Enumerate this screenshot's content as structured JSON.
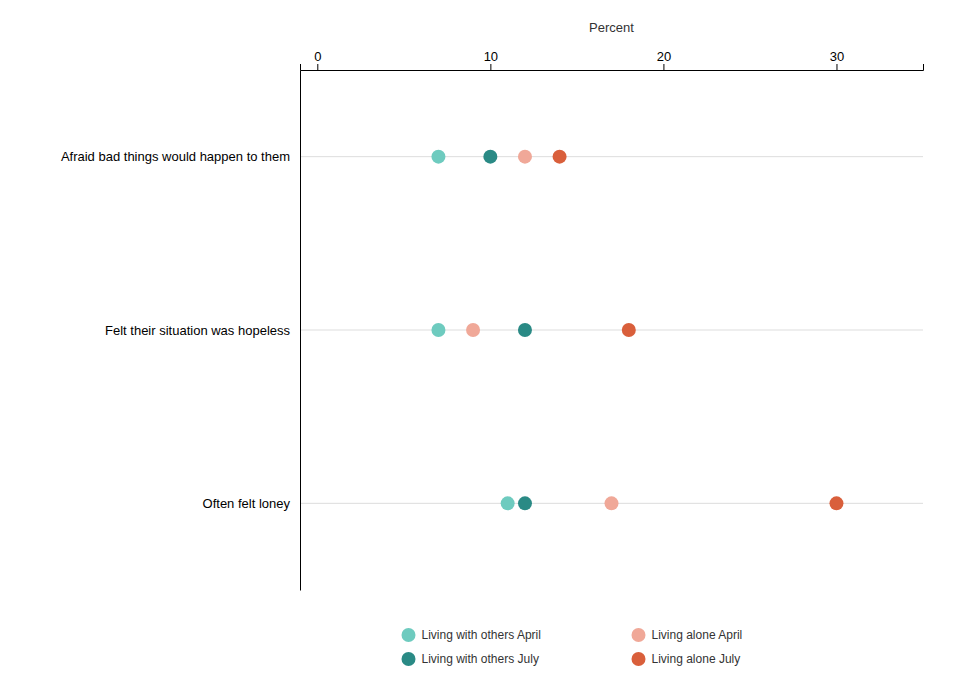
{
  "chart_data": {
    "type": "dot",
    "xlabel": "Percent",
    "categories": [
      "Often felt loney",
      "Felt their situation was hopeless",
      "Afraid bad things would happen to them"
    ],
    "series": [
      {
        "name": "Living with others April",
        "color": "#6ecbbf",
        "values": [
          11,
          7,
          7
        ]
      },
      {
        "name": "Living with others July",
        "color": "#2a8a85",
        "values": [
          12,
          12,
          10
        ]
      },
      {
        "name": "Living alone April",
        "color": "#f0a898",
        "values": [
          17,
          9,
          12
        ]
      },
      {
        "name": "Living alone July",
        "color": "#d95f3b",
        "values": [
          30,
          18,
          14
        ]
      }
    ],
    "xlim": [
      -1,
      35
    ],
    "xticks": [
      0,
      10,
      20,
      30
    ]
  }
}
